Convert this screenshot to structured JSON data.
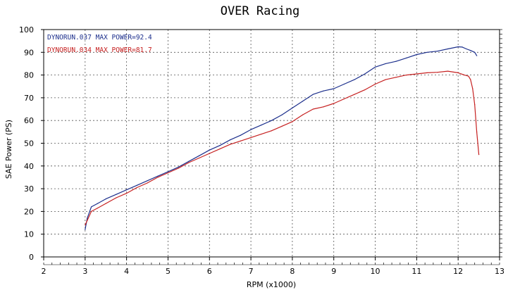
{
  "chart_data": {
    "type": "line",
    "title": "OVER Racing",
    "xlabel": "RPM (x1000)",
    "ylabel": "SAE Power (PS)",
    "xlim": [
      2,
      13
    ],
    "ylim": [
      0,
      100
    ],
    "x_ticks": [
      "2",
      "3",
      "4",
      "5",
      "6",
      "7",
      "8",
      "9",
      "10",
      "11",
      "12",
      "13"
    ],
    "y_ticks": [
      "0",
      "10",
      "20",
      "30",
      "40",
      "50",
      "60",
      "70",
      "80",
      "90",
      "100"
    ],
    "grid": true,
    "legend_position": "top-left",
    "series": [
      {
        "name": "DYNORUN.037  MAX POWER=92.4",
        "color": "#1c2f8c",
        "x": [
          3.0,
          3.05,
          3.15,
          3.3,
          3.5,
          3.75,
          4.0,
          4.25,
          4.5,
          4.75,
          5.0,
          5.25,
          5.5,
          5.75,
          6.0,
          6.25,
          6.5,
          6.75,
          7.0,
          7.25,
          7.5,
          7.75,
          8.0,
          8.25,
          8.5,
          8.75,
          9.0,
          9.25,
          9.5,
          9.75,
          10.0,
          10.25,
          10.5,
          10.75,
          11.0,
          11.25,
          11.5,
          11.75,
          12.0,
          12.1,
          12.2,
          12.3,
          12.4,
          12.45
        ],
        "values": [
          12,
          17,
          22,
          23.5,
          25.5,
          27.5,
          29.5,
          31.5,
          33.5,
          35.5,
          37.5,
          39.5,
          42,
          44.5,
          47,
          49,
          51.5,
          53.5,
          56,
          58,
          60,
          62.5,
          65.5,
          68.5,
          71.5,
          73,
          74,
          76,
          78,
          80.5,
          83.5,
          85,
          86,
          87.5,
          89,
          90,
          90.5,
          91.5,
          92.4,
          92.3,
          91.5,
          90.8,
          90.0,
          88.5
        ]
      },
      {
        "name": "DYNORUN.034  MAX POWER=81.7",
        "color": "#c62020",
        "x": [
          3.0,
          3.05,
          3.15,
          3.3,
          3.5,
          3.75,
          4.0,
          4.25,
          4.5,
          4.75,
          5.0,
          5.25,
          5.5,
          5.75,
          6.0,
          6.25,
          6.5,
          6.75,
          7.0,
          7.25,
          7.5,
          7.75,
          8.0,
          8.25,
          8.5,
          8.75,
          9.0,
          9.25,
          9.5,
          9.75,
          10.0,
          10.25,
          10.5,
          10.75,
          11.0,
          11.25,
          11.5,
          11.75,
          12.0,
          12.15,
          12.25,
          12.3,
          12.35,
          12.4,
          12.45,
          12.5
        ],
        "values": [
          14,
          16,
          20,
          21.5,
          23.5,
          26,
          28,
          30.5,
          32.5,
          35,
          37,
          39,
          41.5,
          43.5,
          45.5,
          47.5,
          49.5,
          51,
          52.5,
          54,
          55.5,
          57.5,
          59.5,
          62.5,
          65,
          66,
          67.5,
          69.5,
          71.5,
          73.5,
          76,
          78,
          79,
          80,
          80.5,
          81,
          81.2,
          81.7,
          81.0,
          80.0,
          79.5,
          78.0,
          74.0,
          67.0,
          55.0,
          45.0
        ]
      }
    ]
  }
}
